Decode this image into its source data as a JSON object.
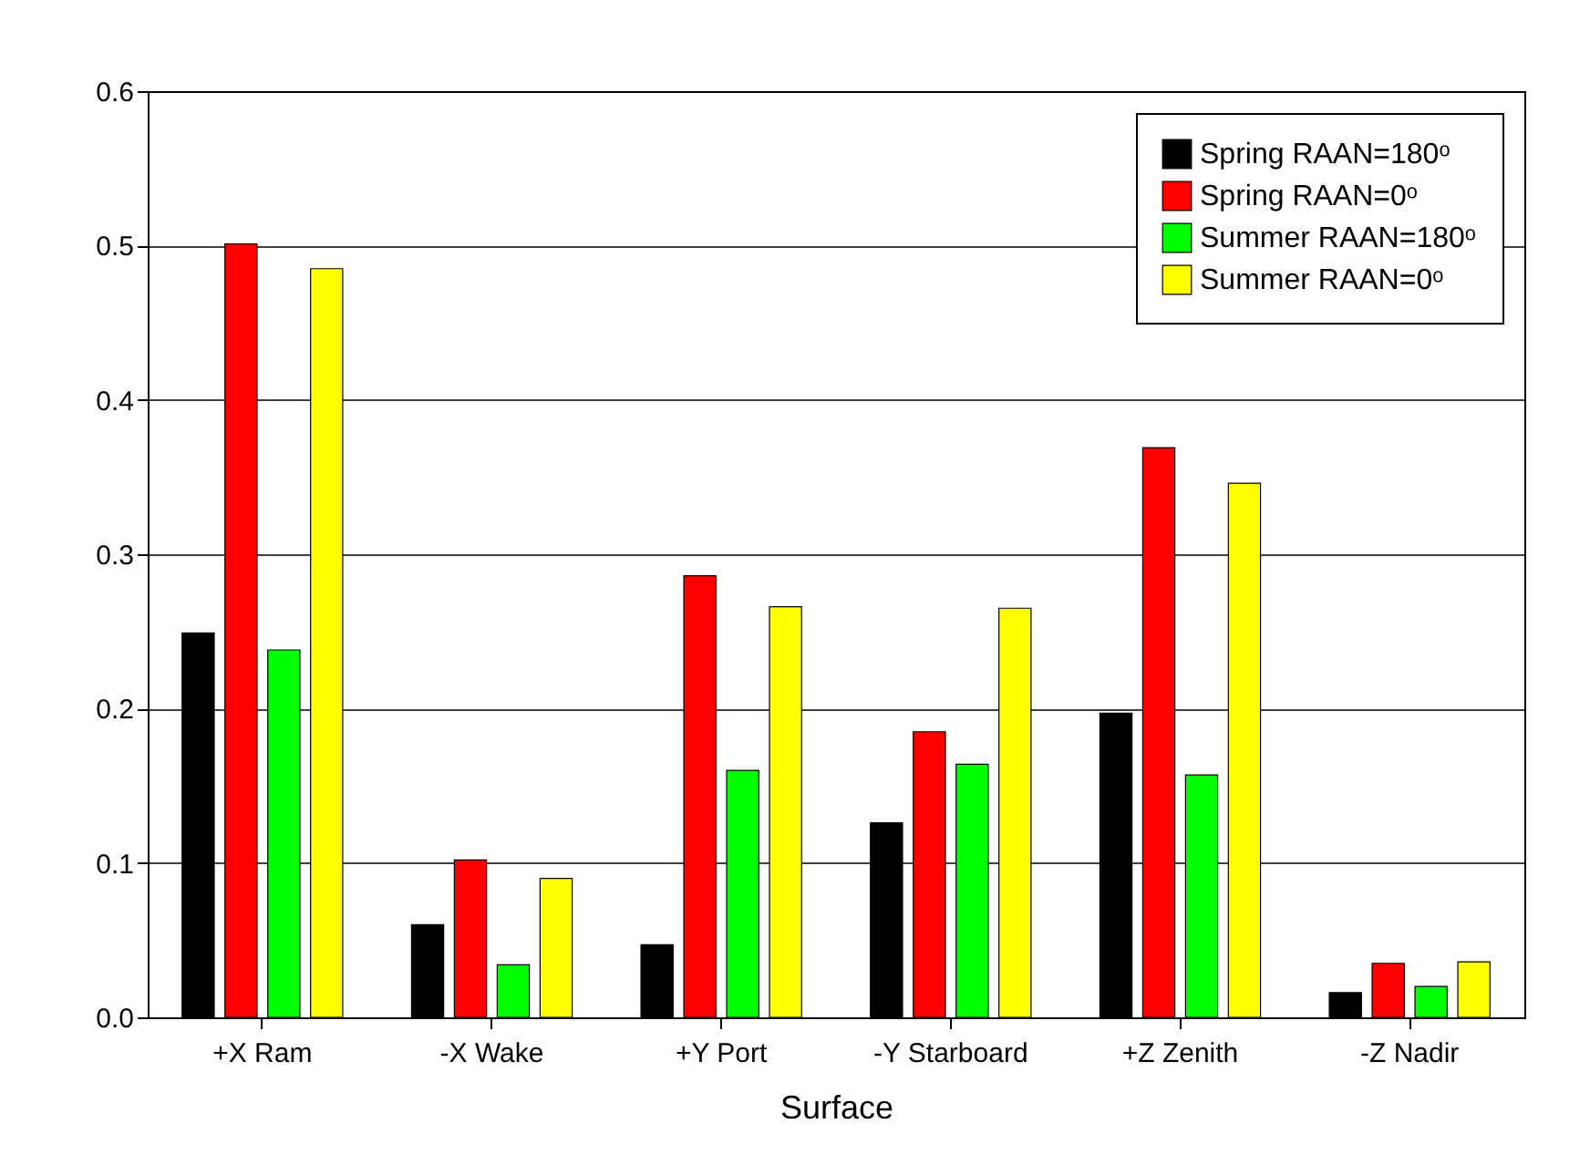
{
  "chart_data": {
    "type": "bar",
    "xlabel": "Surface",
    "categories": [
      "+X Ram",
      "-X Wake",
      "+Y Port",
      "-Y Starboard",
      "+Z Zenith",
      "-Z Nadir"
    ],
    "series": [
      {
        "name": "Spring RAAN=180ᵒ",
        "color": "#000000",
        "values": [
          0.249,
          0.06,
          0.047,
          0.126,
          0.197,
          0.016
        ]
      },
      {
        "name": "Spring RAAN=0ᵒ",
        "color": "#ff0000",
        "values": [
          0.501,
          0.102,
          0.286,
          0.185,
          0.369,
          0.035
        ]
      },
      {
        "name": "Summer RAAN=180ᵒ",
        "color": "#00ff00",
        "values": [
          0.238,
          0.034,
          0.16,
          0.164,
          0.157,
          0.02
        ]
      },
      {
        "name": "Summer RAAN=0ᵒ",
        "color": "#ffff00",
        "values": [
          0.485,
          0.09,
          0.266,
          0.265,
          0.346,
          0.036
        ]
      }
    ],
    "ylim": [
      0,
      0.6
    ],
    "yticks": [
      {
        "value": 0,
        "label": "0.0"
      },
      0.1,
      0.2,
      0.3,
      0.4,
      0.5,
      0.6
    ],
    "grid": "y",
    "legend": "top right"
  }
}
